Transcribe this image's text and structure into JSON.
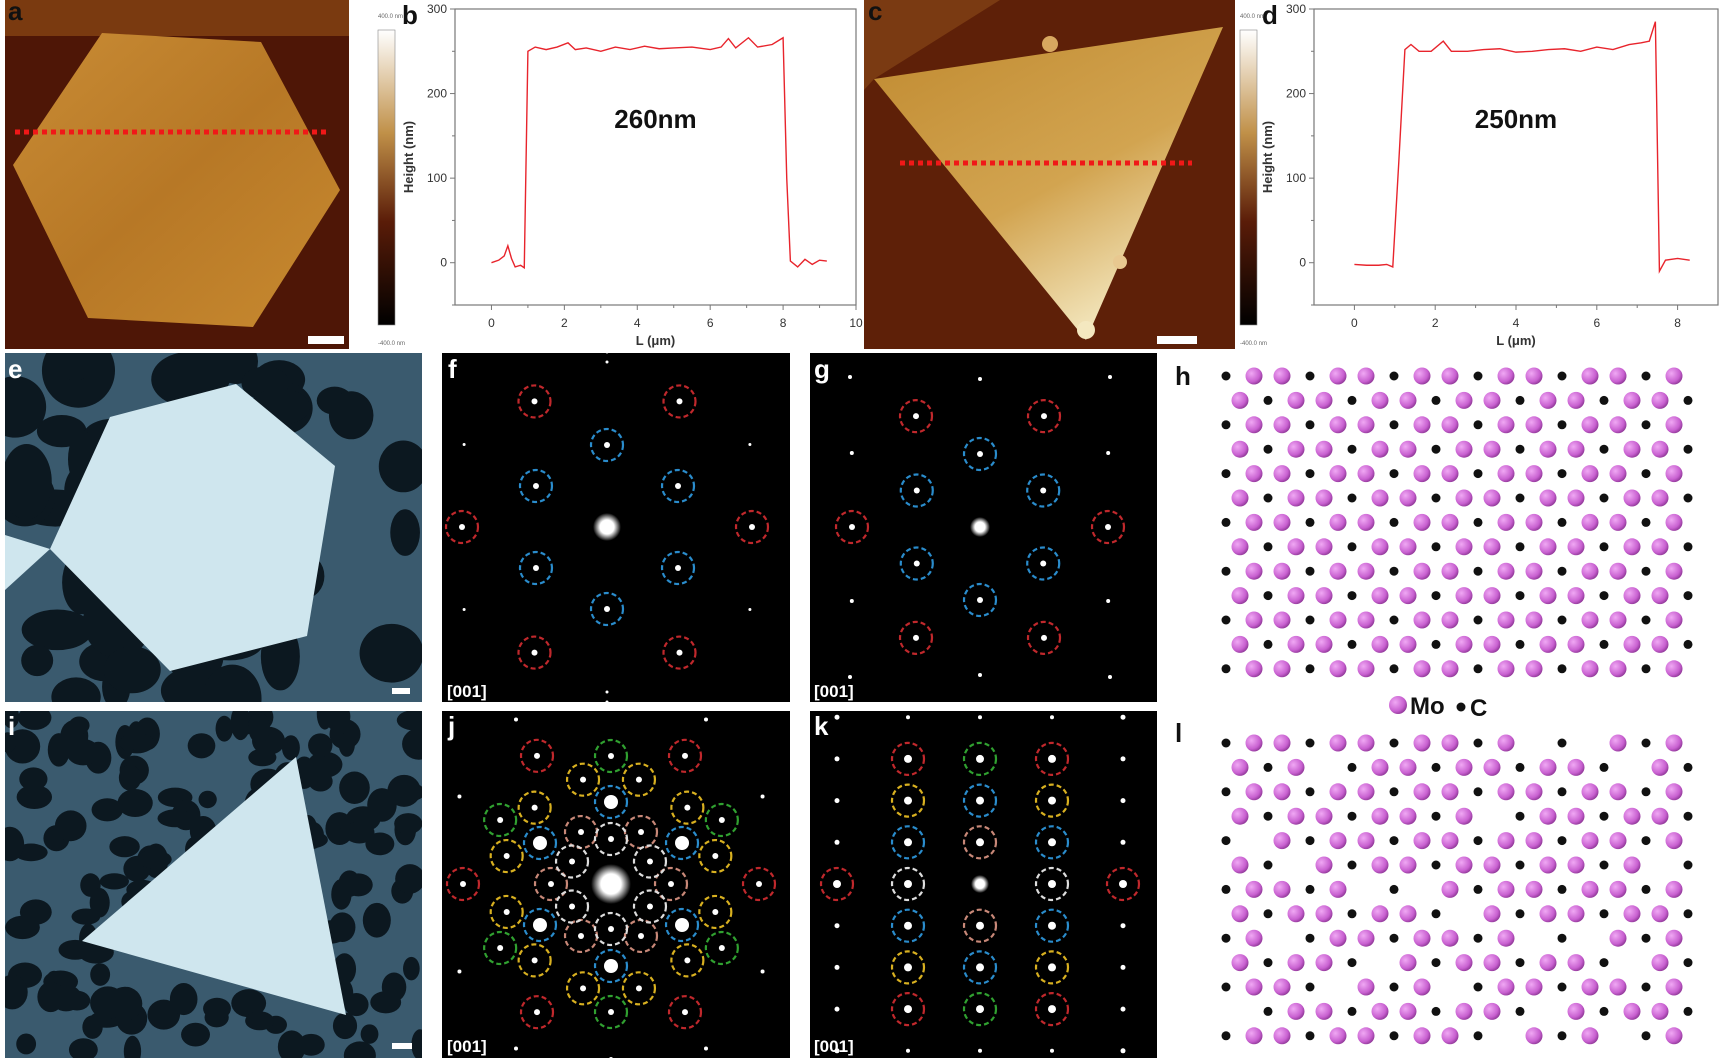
{
  "panel_labels": {
    "a": "a",
    "b": "b",
    "c": "c",
    "d": "d",
    "e": "e",
    "f": "f",
    "g": "g",
    "h": "h",
    "i": "i",
    "j": "j",
    "k": "k",
    "l": "l"
  },
  "colorbar": {
    "max": "400.0 nm",
    "min": "-400.0 nm"
  },
  "zone_axis": "[001]",
  "legend": {
    "mo": "Mo",
    "c": "C",
    "mo_color": "#d070d8",
    "c_color": "#111111"
  },
  "ring_colors": {
    "red": "#c0282c",
    "blue": "#2a8ccc",
    "yellow": "#d8b020",
    "green": "#30a030",
    "white": "#dddddd",
    "pink": "#c88878"
  },
  "chart_data": [
    {
      "type": "line",
      "panel": "b",
      "xlabel": "L (μm)",
      "ylabel": "Height (nm)",
      "xlim": [
        -1,
        10
      ],
      "ylim": [
        -50,
        300
      ],
      "xticks": [
        0,
        2,
        4,
        6,
        8,
        10
      ],
      "yticks": [
        0,
        100,
        200,
        300
      ],
      "annotation": "260nm",
      "line_color": "#e8242c",
      "points": [
        [
          0,
          0
        ],
        [
          0.2,
          3
        ],
        [
          0.35,
          8
        ],
        [
          0.45,
          20
        ],
        [
          0.55,
          5
        ],
        [
          0.65,
          -5
        ],
        [
          0.8,
          -3
        ],
        [
          0.9,
          -6
        ],
        [
          1.0,
          250
        ],
        [
          1.2,
          255
        ],
        [
          1.5,
          252
        ],
        [
          1.8,
          255
        ],
        [
          2.1,
          260
        ],
        [
          2.3,
          252
        ],
        [
          2.6,
          254
        ],
        [
          3.0,
          250
        ],
        [
          3.4,
          255
        ],
        [
          3.8,
          252
        ],
        [
          4.2,
          256
        ],
        [
          4.6,
          253
        ],
        [
          5.0,
          254
        ],
        [
          5.5,
          255
        ],
        [
          6.0,
          252
        ],
        [
          6.3,
          255
        ],
        [
          6.5,
          265
        ],
        [
          6.7,
          254
        ],
        [
          7.05,
          266
        ],
        [
          7.3,
          255
        ],
        [
          7.7,
          258
        ],
        [
          8.0,
          266
        ],
        [
          8.1,
          100
        ],
        [
          8.2,
          2
        ],
        [
          8.4,
          -5
        ],
        [
          8.6,
          4
        ],
        [
          8.8,
          -2
        ],
        [
          9.0,
          3
        ],
        [
          9.2,
          2
        ]
      ]
    },
    {
      "type": "line",
      "panel": "d",
      "xlabel": "L (μm)",
      "ylabel": "Height (nm)",
      "xlim": [
        -1,
        9
      ],
      "ylim": [
        -50,
        300
      ],
      "xticks": [
        0,
        2,
        4,
        6,
        8
      ],
      "yticks": [
        0,
        100,
        200,
        300
      ],
      "annotation": "250nm",
      "line_color": "#e8242c",
      "points": [
        [
          0,
          -2
        ],
        [
          0.3,
          -3
        ],
        [
          0.6,
          -3
        ],
        [
          0.8,
          -2
        ],
        [
          0.95,
          -5
        ],
        [
          1.1,
          120
        ],
        [
          1.25,
          252
        ],
        [
          1.4,
          258
        ],
        [
          1.6,
          250
        ],
        [
          1.9,
          250
        ],
        [
          2.2,
          262
        ],
        [
          2.4,
          250
        ],
        [
          2.8,
          250
        ],
        [
          3.2,
          252
        ],
        [
          3.6,
          253
        ],
        [
          4.0,
          249
        ],
        [
          4.4,
          250
        ],
        [
          4.8,
          252
        ],
        [
          5.2,
          253
        ],
        [
          5.6,
          250
        ],
        [
          6.0,
          255
        ],
        [
          6.4,
          252
        ],
        [
          6.8,
          258
        ],
        [
          7.1,
          260
        ],
        [
          7.3,
          262
        ],
        [
          7.45,
          285
        ],
        [
          7.55,
          -10
        ],
        [
          7.7,
          3
        ],
        [
          8.0,
          5
        ],
        [
          8.3,
          3
        ]
      ]
    }
  ]
}
